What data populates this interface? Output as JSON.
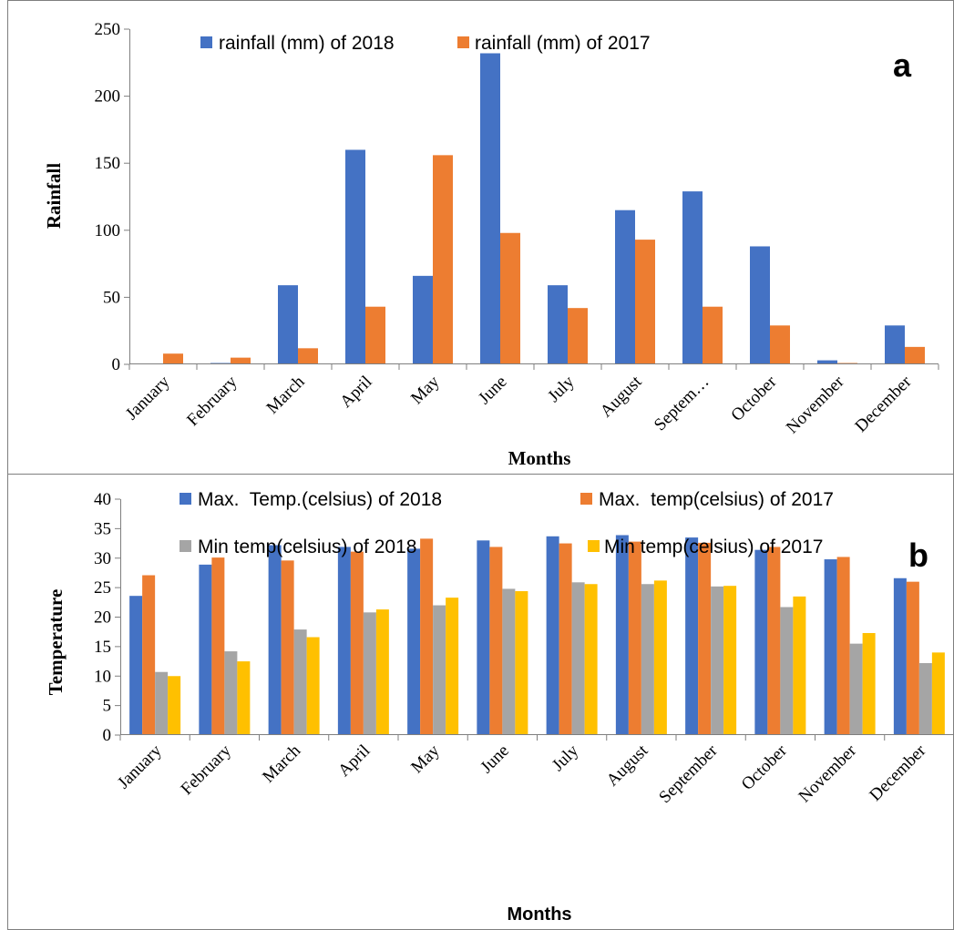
{
  "colors": {
    "series_2018": "#4472C4",
    "series_2017": "#ED7D31",
    "min_2018": "#A5A5A5",
    "min_2017": "#FFC000",
    "axis": "#7f7f7f",
    "frame": "#7f7f7f"
  },
  "chart_data": [
    {
      "type": "bar",
      "panel_label": "a",
      "title": "",
      "xlabel": "Months",
      "ylabel": "Rainfall",
      "ylim": [
        0,
        250
      ],
      "yticks": [
        0,
        50,
        100,
        150,
        200,
        250
      ],
      "grid": false,
      "legend_position": "top",
      "categories": [
        "January",
        "February",
        "March",
        "April",
        "May",
        "June",
        "July",
        "August",
        "Septem…",
        "October",
        "November",
        "December"
      ],
      "series": [
        {
          "name": "rainfall (mm) of 2018",
          "color": "#4472C4",
          "values": [
            0,
            1,
            59,
            160,
            66,
            232,
            59,
            115,
            129,
            88,
            3,
            29
          ]
        },
        {
          "name": "rainfall (mm) of 2017",
          "color": "#ED7D31",
          "values": [
            8,
            5,
            12,
            43,
            156,
            98,
            42,
            93,
            43,
            29,
            1,
            13
          ]
        }
      ]
    },
    {
      "type": "bar",
      "panel_label": "b",
      "title": "",
      "xlabel": "Months",
      "ylabel": "Temperature",
      "ylim": [
        0,
        40
      ],
      "yticks": [
        0,
        5,
        10,
        15,
        20,
        25,
        30,
        35,
        40
      ],
      "grid": false,
      "legend_position": "top",
      "categories": [
        "January",
        "February",
        "March",
        "April",
        "May",
        "June",
        "July",
        "August",
        "September",
        "October",
        "November",
        "December"
      ],
      "series": [
        {
          "name": "Max.  Temp.(celsius) of 2018",
          "color": "#4472C4",
          "values": [
            23.6,
            28.9,
            32.2,
            31.9,
            31.6,
            33.0,
            33.7,
            33.9,
            33.5,
            31.4,
            29.8,
            26.6
          ]
        },
        {
          "name": "Max.  temp(celsius) of 2017",
          "color": "#ED7D31",
          "values": [
            27.1,
            30.1,
            29.6,
            31.1,
            33.3,
            31.9,
            32.5,
            32.8,
            32.6,
            31.9,
            30.2,
            26.0
          ]
        },
        {
          "name": "Min temp(celsius) of 2018",
          "color": "#A5A5A5",
          "values": [
            10.7,
            14.2,
            17.9,
            20.8,
            22.0,
            24.8,
            25.9,
            25.6,
            25.2,
            21.7,
            15.5,
            12.2
          ]
        },
        {
          "name": "Min temp(celsius) of 2017",
          "color": "#FFC000",
          "values": [
            10.0,
            12.5,
            16.6,
            21.3,
            23.3,
            24.4,
            25.6,
            26.2,
            25.3,
            23.5,
            17.3,
            14.0
          ]
        }
      ]
    }
  ]
}
